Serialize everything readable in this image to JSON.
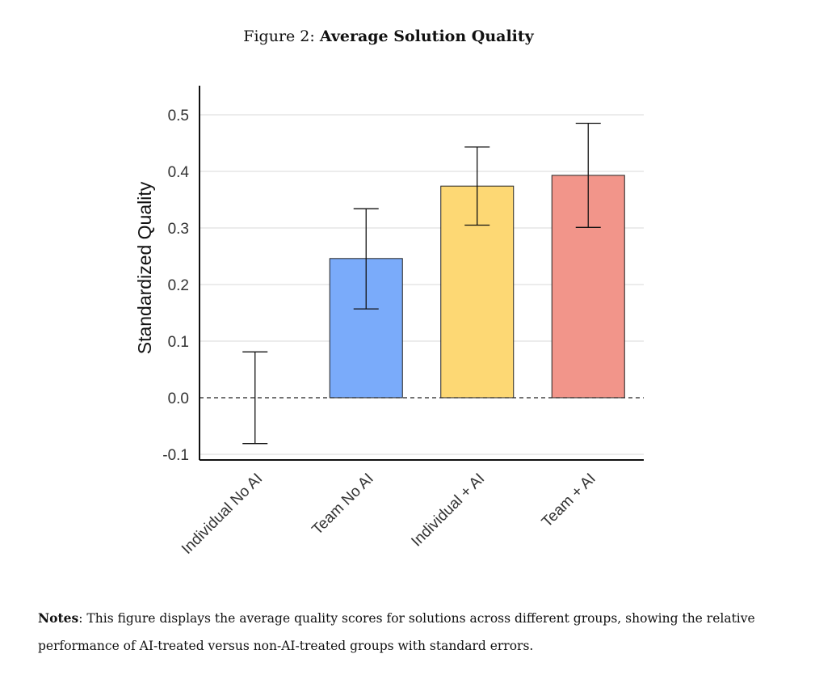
{
  "figure": {
    "prefix": "Figure 2:",
    "name": "Average Solution Quality"
  },
  "notes": {
    "label": "Notes",
    "text": ": This figure displays the average quality scores for solutions across different groups, showing the relative performance of AI-treated versus non-AI-treated groups with standard errors."
  },
  "chart_data": {
    "type": "bar",
    "ylabel": "Standardized Quality",
    "xlabel": "",
    "ylim": [
      -0.11,
      0.54
    ],
    "yticks": [
      -0.1,
      0.0,
      0.1,
      0.2,
      0.3,
      0.4,
      0.5
    ],
    "ytick_labels": [
      "-0.1",
      "0.0",
      "0.1",
      "0.2",
      "0.3",
      "0.4",
      "0.5"
    ],
    "grid": true,
    "reference_line": 0.0,
    "categories": [
      "Individual No AI",
      "Team No AI",
      "Individual + AI",
      "Team + AI"
    ],
    "values": [
      0.0,
      0.246,
      0.374,
      0.393
    ],
    "error_low": [
      -0.081,
      0.157,
      0.305,
      0.301
    ],
    "error_high": [
      0.081,
      0.334,
      0.443,
      0.485
    ],
    "colors": [
      "#ffffff",
      "#7aabfa",
      "#fdd874",
      "#f2958a"
    ]
  }
}
